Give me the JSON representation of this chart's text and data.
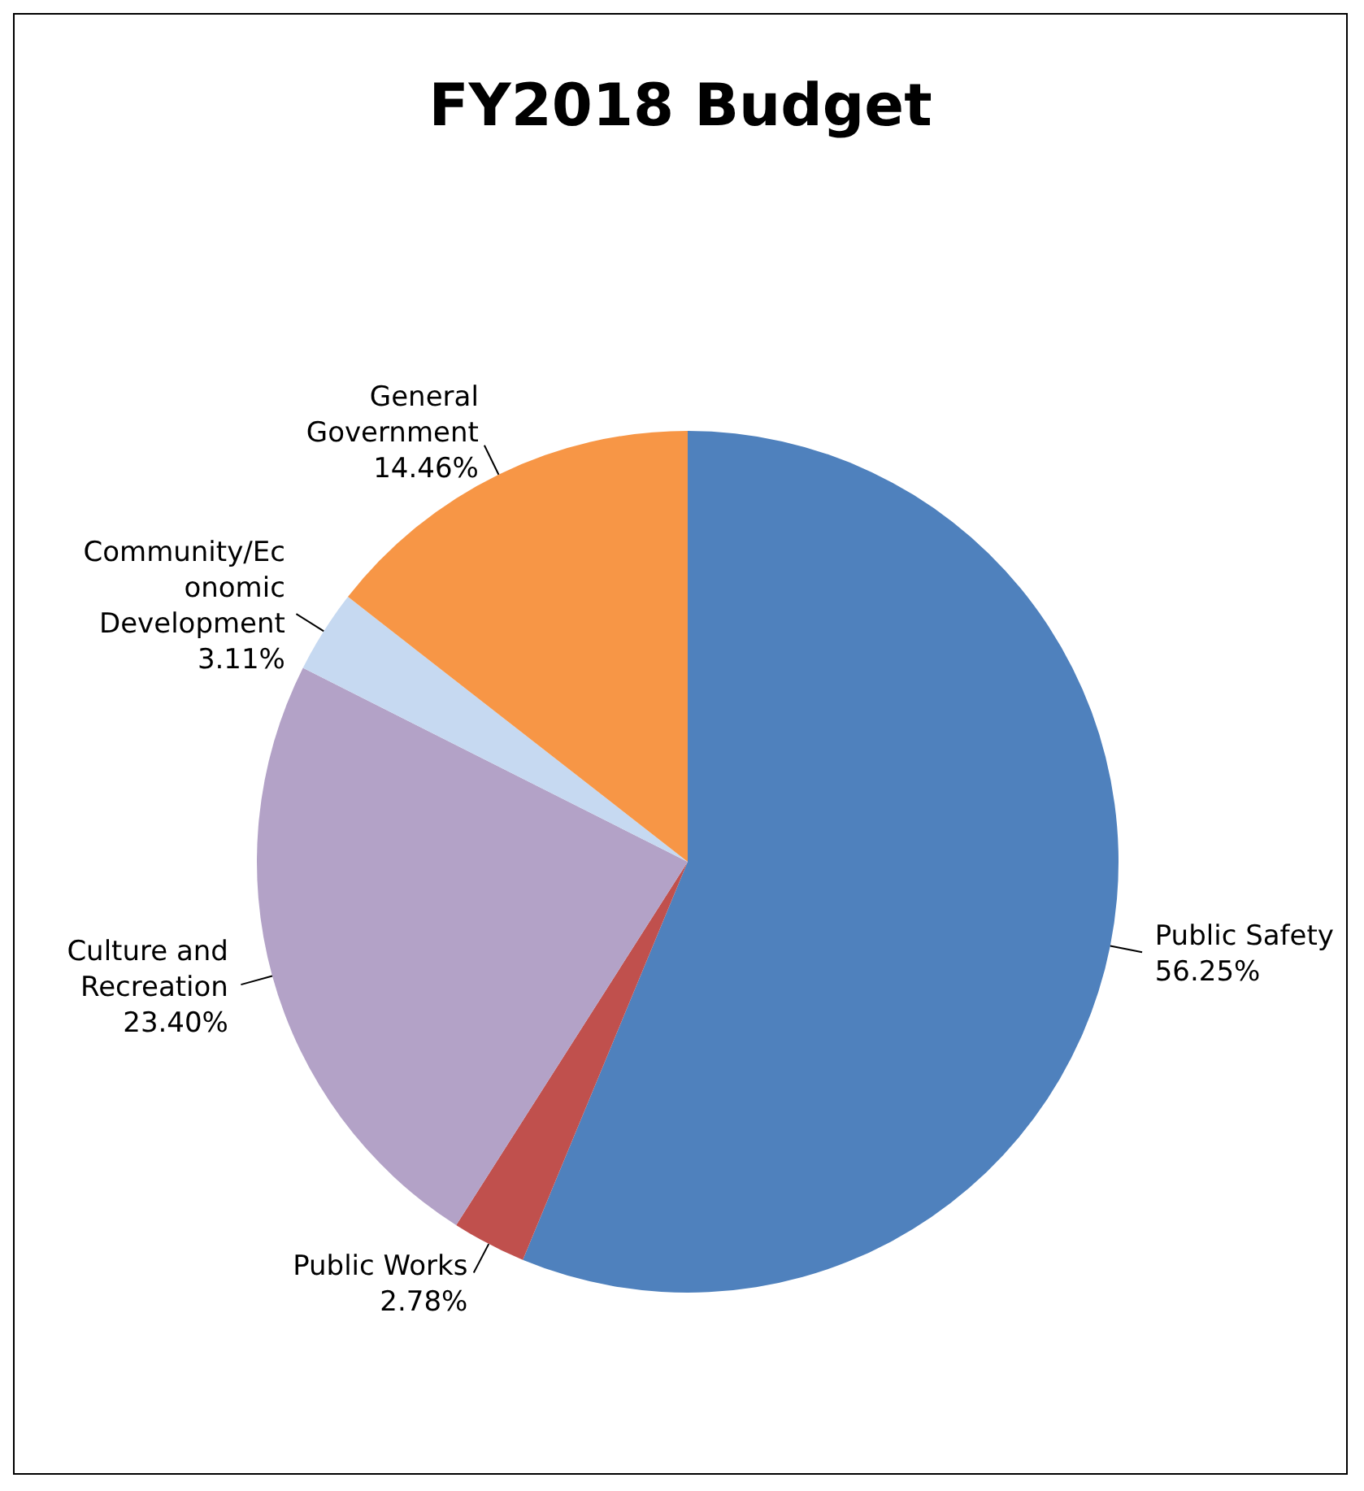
{
  "chart_data": {
    "type": "pie",
    "title": "FY2018 Budget",
    "categories": [
      "Public Safety",
      "Public Works",
      "Culture and Recreation",
      "Community/Economic Development",
      "General Government"
    ],
    "values": [
      56.25,
      2.78,
      23.4,
      3.11,
      14.46
    ],
    "value_labels": [
      "56.25%",
      "2.78%",
      "23.40%",
      "3.11%",
      "14.46%"
    ],
    "colors": [
      "#4f81bd",
      "#c0504d",
      "#b3a2c7",
      "#c6d9f1",
      "#f79646"
    ]
  }
}
